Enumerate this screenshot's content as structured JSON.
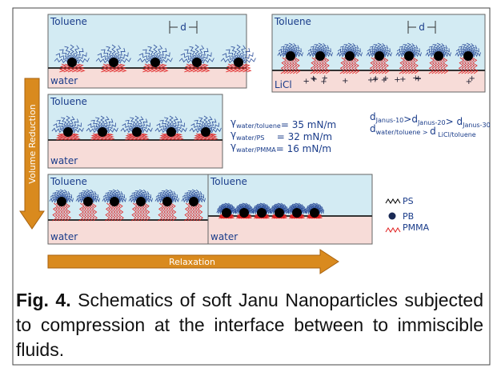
{
  "panels": [
    {
      "top": "Toluene",
      "bottom": "water",
      "d": "d"
    },
    {
      "top": "Toluene",
      "bottom": "LiCl",
      "d": "d"
    },
    {
      "top": "Toluene",
      "bottom": "water"
    },
    {
      "top": "Toluene",
      "bottom": "water"
    },
    {
      "top": "Toluene",
      "bottom": "water"
    }
  ],
  "arrows": {
    "vertical": "Volume Reduction",
    "horizontal": "Relaxation"
  },
  "tensions": [
    [
      {
        "text": "γ",
        "sub": "water/toluene"
      },
      {
        "text": "= 35 mN/m"
      }
    ],
    [
      {
        "text": "γ",
        "sub": "water/PS"
      },
      {
        "text": "    = 32 mN/m"
      }
    ],
    [
      {
        "text": "γ",
        "sub": "water/PMMA"
      },
      {
        "text": "= 16 mN/m"
      }
    ]
  ],
  "spacing": [
    [
      {
        "text": "d",
        "sub": "Janus-10"
      },
      {
        "text": ">d",
        "sub": "Janus-20"
      },
      {
        "text": "> d",
        "sub": "Janus-30"
      }
    ],
    [
      {
        "text": "d",
        "sub": "water/toluene > "
      },
      {
        "text": "d",
        "sub": " LiCl/toluene"
      }
    ]
  ],
  "legend": [
    "PS",
    "PB",
    "PMMA"
  ],
  "caption": {
    "label": "Fig. 4.",
    "text": "Schematics of soft Janu Nanoparticles subjected to compression at the interface between to immiscible fluids."
  }
}
